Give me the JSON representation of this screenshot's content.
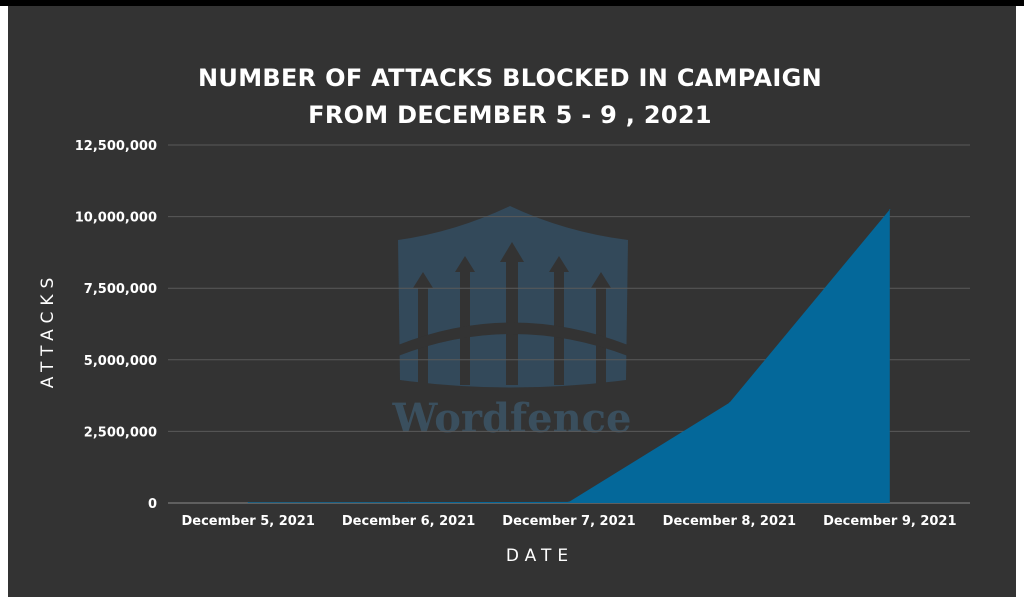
{
  "colors": {
    "background": "#333333",
    "area": "#04689a",
    "grid": "#5a5a5a",
    "text": "#ffffff",
    "watermark": "#33495a"
  },
  "watermark": {
    "text": "Wordfence",
    "icon": "wordfence-shield-icon"
  },
  "chart_data": {
    "type": "area",
    "title_lines": [
      "NUMBER OF ATTACKS BLOCKED IN CAMPAIGN",
      "FROM DECEMBER 5 - 9 , 2021"
    ],
    "xlabel": "DATE",
    "ylabel": "ATTACKS",
    "categories": [
      "December 5, 2021",
      "December 6, 2021",
      "December 7, 2021",
      "December 8, 2021",
      "December 9, 2021"
    ],
    "values": [
      20000,
      30000,
      40000,
      3500000,
      10250000
    ],
    "ylim": [
      0,
      12500000
    ],
    "yticks": [
      0,
      2500000,
      5000000,
      7500000,
      10000000,
      12500000
    ],
    "ytick_labels": [
      "0",
      "2,500,000",
      "5,000,000",
      "7,500,000",
      "10,000,000",
      "12,500,000"
    ],
    "grid": true,
    "legend": "none"
  }
}
